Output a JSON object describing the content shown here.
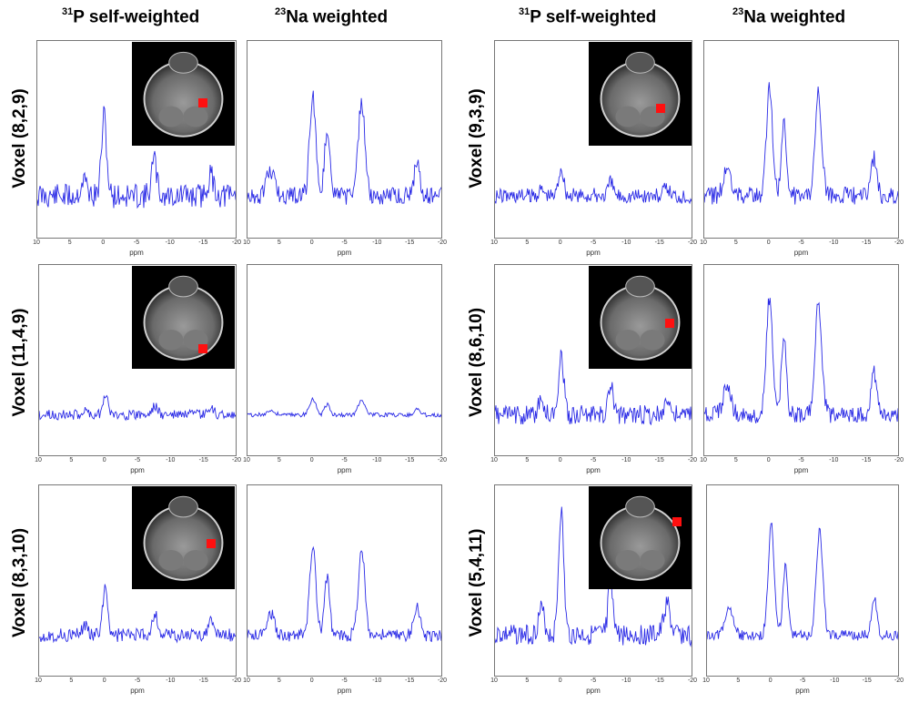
{
  "headers": {
    "p31_iso": "31",
    "p31_text": "P self-weighted",
    "na23_iso": "23",
    "na23_text": "Na weighted"
  },
  "axis": {
    "ticks": [
      "10",
      "5",
      "0",
      "-5",
      "-10",
      "-15",
      "-20"
    ],
    "unit": "ppm"
  },
  "colors": {
    "trace": "#2a2ae6",
    "marker": "#ff1010"
  },
  "voxels": [
    {
      "label": "Voxel (8,2,9)",
      "seed": 11,
      "p_peak": 0.55,
      "na_peak": 0.7,
      "p_noise": 0.35,
      "na_noise": 0.25
    },
    {
      "label": "Voxel (11,4,9)",
      "seed": 23,
      "p_peak": 0.15,
      "na_peak": 0.12,
      "p_noise": 0.15,
      "na_noise": 0.06
    },
    {
      "label": "Voxel (8,3,10)",
      "seed": 37,
      "p_peak": 0.35,
      "na_peak": 0.65,
      "p_noise": 0.2,
      "na_noise": 0.18
    },
    {
      "label": "Voxel (9,3,9)",
      "seed": 41,
      "p_peak": 0.2,
      "na_peak": 0.75,
      "p_noise": 0.22,
      "na_noise": 0.25
    },
    {
      "label": "Voxel (8,6,10)",
      "seed": 53,
      "p_peak": 0.45,
      "na_peak": 0.85,
      "p_noise": 0.28,
      "na_noise": 0.25
    },
    {
      "label": "Voxel (5,4,11)",
      "seed": 67,
      "p_peak": 0.9,
      "na_peak": 0.8,
      "p_noise": 0.3,
      "na_noise": 0.15
    }
  ]
}
